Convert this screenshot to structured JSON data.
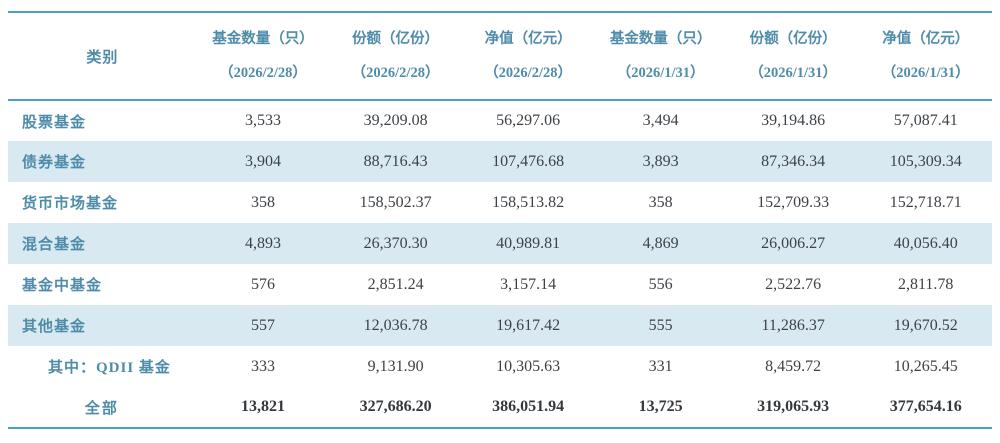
{
  "table": {
    "category_header": "类别",
    "columns": [
      {
        "label": "基金数量（只）",
        "date": "（2026/2/28）"
      },
      {
        "label": "份额（亿份）",
        "date": "（2026/2/28）"
      },
      {
        "label": "净值（亿元）",
        "date": "（2026/2/28）"
      },
      {
        "label": "基金数量（只）",
        "date": "（2026/1/31）"
      },
      {
        "label": "份额（亿份）",
        "date": "（2026/1/31）"
      },
      {
        "label": "净值（亿元）",
        "date": "（2026/1/31）"
      }
    ],
    "rows": [
      {
        "category": "股票基金",
        "values": [
          "3,533",
          "39,209.08",
          "56,297.06",
          "3,494",
          "39,194.86",
          "57,087.41"
        ]
      },
      {
        "category": "债券基金",
        "values": [
          "3,904",
          "88,716.43",
          "107,476.68",
          "3,893",
          "87,346.34",
          "105,309.34"
        ]
      },
      {
        "category": "货币市场基金",
        "values": [
          "358",
          "158,502.37",
          "158,513.82",
          "358",
          "152,709.33",
          "152,718.71"
        ]
      },
      {
        "category": "混合基金",
        "values": [
          "4,893",
          "26,370.30",
          "40,989.81",
          "4,869",
          "26,006.27",
          "40,056.40"
        ]
      },
      {
        "category": "基金中基金",
        "values": [
          "576",
          "2,851.24",
          "3,157.14",
          "556",
          "2,522.76",
          "2,811.78"
        ]
      },
      {
        "category": "其他基金",
        "values": [
          "557",
          "12,036.78",
          "19,617.42",
          "555",
          "11,286.37",
          "19,670.52"
        ]
      },
      {
        "category": "其中：QDII 基金",
        "values": [
          "333",
          "9,131.90",
          "10,305.63",
          "331",
          "8,459.72",
          "10,265.45"
        ]
      },
      {
        "category": "全部",
        "values": [
          "13,821",
          "327,686.20",
          "386,051.94",
          "13,725",
          "319,065.93",
          "377,654.16"
        ]
      }
    ],
    "colors": {
      "rule_line": "#4b9fc2",
      "row_shade": "#d9e9f1",
      "label_text": "#4f8caa",
      "value_text": "#3d4247"
    }
  }
}
